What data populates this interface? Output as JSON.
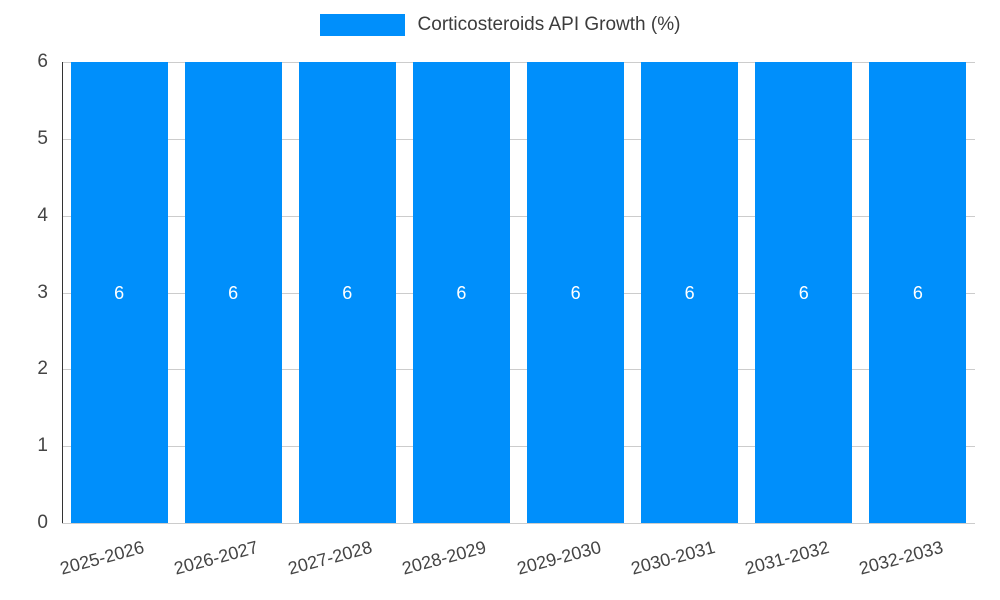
{
  "colors": {
    "bar": "#008ffb",
    "grid": "#cccccc",
    "axis_line": "#333333",
    "axis_text": "#444444",
    "bar_label_text": "#ffffff",
    "legend_text": "#3c3c3c",
    "background": "#ffffff"
  },
  "chart_data": {
    "type": "bar",
    "title": "Corticosteroids API Growth (%)",
    "categories": [
      "2025-2026",
      "2026-2027",
      "2027-2028",
      "2028-2029",
      "2029-2030",
      "2030-2031",
      "2031-2032",
      "2032-2033"
    ],
    "values": [
      6,
      6,
      6,
      6,
      6,
      6,
      6,
      6
    ],
    "bar_value_labels": [
      "6",
      "6",
      "6",
      "6",
      "6",
      "6",
      "6",
      "6"
    ],
    "xlabel": "",
    "ylabel": "",
    "ylim": [
      0,
      6
    ],
    "yticks": [
      0,
      1,
      2,
      3,
      4,
      5,
      6
    ],
    "grid": true,
    "legend_position": "top",
    "x_tick_rotation_deg": -15
  }
}
